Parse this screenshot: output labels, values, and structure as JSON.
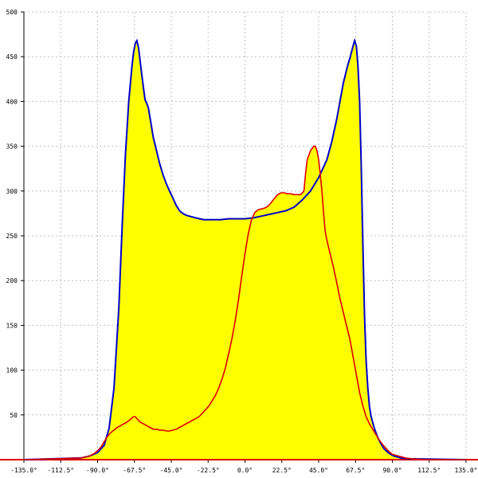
{
  "chart_data": {
    "type": "area",
    "title": "",
    "xlabel": "",
    "ylabel": "",
    "xlim": [
      -135,
      135
    ],
    "ylim": [
      0,
      500
    ],
    "grid": true,
    "x_tick_labels": [
      "-135.0°",
      "-112.5°",
      "-90.0°",
      "-67.5°",
      "-45.0°",
      "-22.5°",
      "0.0°",
      "22.5°",
      "45.0°",
      "67.5°",
      "90.0°",
      "112.5°",
      "135.0°"
    ],
    "x_tick_values": [
      -135,
      -112.5,
      -90,
      -67.5,
      -45,
      -22.5,
      0,
      22.5,
      45,
      67.5,
      90,
      112.5,
      135
    ],
    "y_tick_labels": [
      "50",
      "100",
      "150",
      "200",
      "250",
      "300",
      "350",
      "400",
      "450",
      "500"
    ],
    "y_tick_values": [
      50,
      100,
      150,
      200,
      250,
      300,
      350,
      400,
      450,
      500
    ],
    "colors": {
      "fill": "#ffff00",
      "series_a": "#0000cc",
      "series_b": "#dd0000",
      "grid": "#c0c0c0"
    },
    "series": [
      {
        "x": [
          -135,
          -100,
          -95,
          -90,
          -86,
          -83,
          -80,
          -77,
          -75,
          -73,
          -71,
          -69,
          -68,
          -67,
          -66,
          -65,
          -64,
          -63,
          -62,
          -61,
          -60,
          -59,
          -58,
          -56,
          -54,
          -52,
          -50,
          -48,
          -46,
          -44,
          -42,
          -40,
          -38,
          -36,
          -34,
          -30,
          -25,
          -20,
          -15,
          -10,
          -5,
          0,
          5,
          10,
          15,
          20,
          25,
          30,
          35,
          40,
          45,
          50,
          53,
          56,
          58,
          60,
          62,
          63,
          64,
          65,
          66,
          67,
          68,
          69,
          70,
          71,
          72,
          73,
          74,
          75,
          76,
          77,
          79,
          81,
          83,
          85,
          88,
          91,
          95,
          100,
          135
        ],
        "y": [
          0,
          2,
          4,
          8,
          16,
          35,
          80,
          170,
          260,
          340,
          400,
          440,
          455,
          465,
          468,
          460,
          445,
          430,
          415,
          402,
          398,
          393,
          382,
          360,
          345,
          330,
          318,
          308,
          300,
          292,
          284,
          278,
          275,
          273,
          272,
          270,
          268,
          268,
          268,
          269,
          269,
          269,
          270,
          272,
          274,
          276,
          278,
          282,
          290,
          300,
          315,
          335,
          355,
          380,
          400,
          420,
          435,
          442,
          448,
          455,
          462,
          468,
          462,
          440,
          400,
          330,
          240,
          160,
          110,
          80,
          60,
          48,
          35,
          25,
          18,
          12,
          7,
          4,
          2,
          1,
          0
        ]
      },
      {
        "x": [
          -135,
          -100,
          -95,
          -92,
          -90,
          -88,
          -86,
          -84,
          -82,
          -80,
          -78,
          -76,
          -74,
          -72,
          -70,
          -68,
          -67,
          -66,
          -65,
          -64,
          -62,
          -60,
          -58,
          -56,
          -54,
          -52,
          -50,
          -48,
          -46,
          -44,
          -42,
          -40,
          -38,
          -36,
          -34,
          -32,
          -30,
          -28,
          -26,
          -24,
          -22,
          -20,
          -18,
          -16,
          -14,
          -12,
          -10,
          -8,
          -6,
          -4,
          -2,
          0,
          2,
          4,
          6,
          8,
          10,
          12,
          14,
          16,
          18,
          20,
          22,
          24,
          26,
          28,
          30,
          32,
          34,
          36,
          37,
          38,
          40,
          42,
          43,
          44,
          45,
          46,
          47,
          48,
          49,
          50,
          52,
          54,
          56,
          58,
          60,
          62,
          64,
          66,
          68,
          70,
          72,
          74,
          76,
          78,
          80,
          82,
          84,
          86,
          88,
          90,
          94,
          98,
          102,
          110,
          135
        ],
        "y": [
          0,
          2,
          4,
          7,
          10,
          14,
          20,
          26,
          30,
          33,
          36,
          38,
          40,
          42,
          45,
          48,
          48,
          46,
          44,
          42,
          40,
          38,
          36,
          34,
          34,
          33,
          33,
          32,
          32,
          33,
          34,
          36,
          38,
          40,
          42,
          44,
          46,
          48,
          52,
          56,
          60,
          66,
          72,
          80,
          90,
          102,
          118,
          135,
          155,
          178,
          205,
          230,
          252,
          268,
          276,
          279,
          280,
          281,
          283,
          287,
          292,
          296,
          298,
          298,
          297,
          297,
          296,
          296,
          296,
          300,
          320,
          335,
          345,
          350,
          350,
          345,
          335,
          318,
          300,
          275,
          255,
          245,
          230,
          215,
          198,
          180,
          165,
          150,
          135,
          115,
          95,
          75,
          60,
          48,
          40,
          34,
          28,
          22,
          17,
          13,
          9,
          6,
          4,
          2,
          1,
          0,
          0
        ]
      }
    ]
  }
}
